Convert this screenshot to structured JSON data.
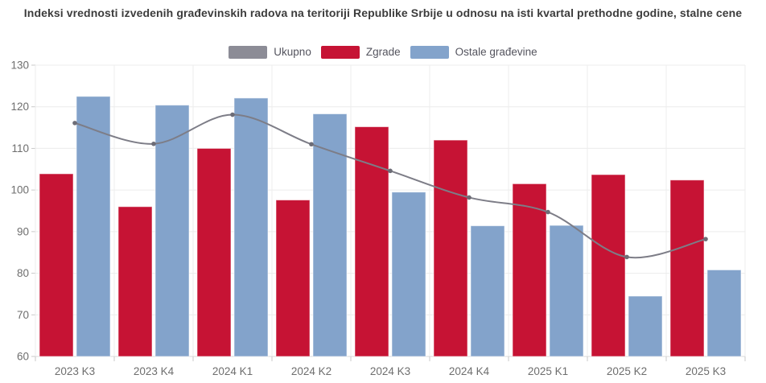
{
  "title": "Indeksi vrednosti izvedenih građevinskih radova na teritoriji Republike Srbije u odnosu na isti kvartal prethodne godine, stalne cene",
  "legend": {
    "items": [
      {
        "label": "Ukupno",
        "color": "#8c8c96"
      },
      {
        "label": "Zgrade",
        "color": "#c61334"
      },
      {
        "label": "Ostale građevine",
        "color": "#83a3cb"
      }
    ]
  },
  "chart_data": {
    "type": "bar",
    "title": "Indeksi vrednosti izvedenih građevinskih radova na teritoriji Republike Srbije u odnosu na isti kvartal prethodne godine, stalne cene",
    "categories": [
      "2023 K3",
      "2023 K4",
      "2024 K1",
      "2024 K2",
      "2024 K3",
      "2024 K4",
      "2025 K1",
      "2025 K2",
      "2025 K3"
    ],
    "series": [
      {
        "name": "Ukupno",
        "type": "line",
        "color": "#7d7d87",
        "point_color": "#6d6d77",
        "values": [
          116.1,
          111.1,
          118.1,
          111.0,
          104.6,
          98.2,
          94.7,
          83.9,
          88.2
        ]
      },
      {
        "name": "Zgrade",
        "type": "bar",
        "color": "#c61334",
        "values": [
          103.9,
          96.0,
          110.0,
          97.6,
          115.2,
          112.0,
          101.5,
          103.7,
          102.4
        ]
      },
      {
        "name": "Ostale građevine",
        "type": "bar",
        "color": "#83a3cb",
        "values": [
          122.5,
          120.4,
          122.1,
          118.3,
          99.5,
          91.4,
          91.5,
          74.5,
          80.8
        ]
      }
    ],
    "xlabel": "",
    "ylabel": "",
    "ylim": [
      60,
      130
    ],
    "yticks": [
      60,
      70,
      80,
      90,
      100,
      110,
      120,
      130
    ],
    "grid": true,
    "legend_position": "top"
  },
  "colors": {
    "background": "#ffffff",
    "grid": "#ececec",
    "axis": "#d9d9d9",
    "tick": "#c9c9c9",
    "axis_label": "#6e6e6e",
    "title_text": "#3c3c3c",
    "legend_text": "#54545e",
    "bar_stroke": "rgba(255,255,255,0.55)"
  }
}
